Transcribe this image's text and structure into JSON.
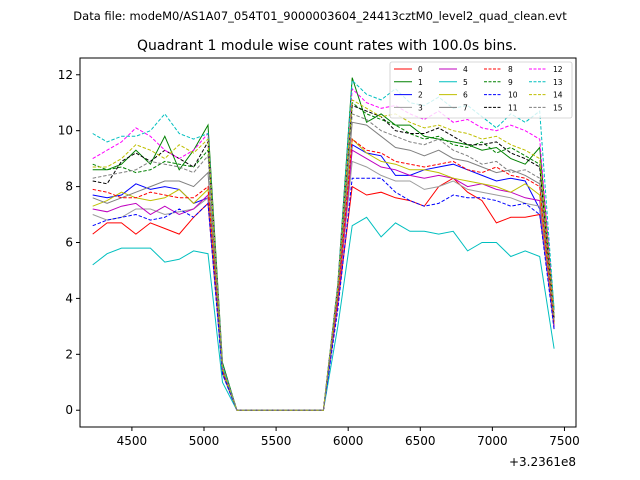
{
  "chart_data": {
    "type": "line",
    "suptitle": "Data file: modeM0/AS1A07_054T01_9000003604_24413cztM0_level2_quad_clean.evt",
    "title": "Quadrant 1 module wise count rates with 100.0s bins.",
    "xlabel": "",
    "ylabel": "",
    "x_offset_label": "+3.2361e8",
    "xlim": [
      4140,
      7580
    ],
    "ylim": [
      -0.6,
      12.6
    ],
    "xticks": [
      4500,
      5000,
      5500,
      6000,
      6500,
      7000,
      7500
    ],
    "yticks": [
      0,
      2,
      4,
      6,
      8,
      10,
      12
    ],
    "legend_position": "top-right",
    "x": [
      4228,
      4328,
      4428,
      4528,
      4628,
      4728,
      4828,
      4928,
      5028,
      5128,
      5228,
      5328,
      5428,
      5528,
      5628,
      5728,
      5828,
      5928,
      6028,
      6128,
      6228,
      6328,
      6428,
      6528,
      6628,
      6728,
      6828,
      6928,
      7028,
      7128,
      7228,
      7328,
      7428
    ],
    "series": [
      {
        "name": "0",
        "color": "#ff0000",
        "dash": false,
        "values": [
          6.3,
          6.7,
          6.7,
          6.3,
          6.7,
          6.5,
          6.3,
          6.9,
          7.4,
          1.4,
          0,
          0,
          0,
          0,
          0,
          0,
          0,
          3.8,
          8.0,
          7.7,
          7.8,
          7.6,
          7.5,
          7.3,
          8.0,
          8.3,
          7.8,
          7.5,
          6.7,
          6.9,
          6.9,
          7.0,
          3.2
        ]
      },
      {
        "name": "1",
        "color": "#008000",
        "dash": false,
        "values": [
          8.6,
          8.6,
          8.8,
          9.3,
          8.8,
          9.8,
          8.6,
          9.3,
          10.2,
          1.7,
          0,
          0,
          0,
          0,
          0,
          0,
          0,
          4.5,
          11.9,
          10.3,
          10.6,
          10.2,
          10.2,
          9.8,
          9.7,
          9.6,
          9.5,
          9.3,
          9.4,
          9.0,
          8.8,
          9.4,
          3.6
        ]
      },
      {
        "name": "2",
        "color": "#0000ff",
        "dash": false,
        "values": [
          7.7,
          7.6,
          7.7,
          8.1,
          7.9,
          8.0,
          7.9,
          7.4,
          7.6,
          1.3,
          0,
          0,
          0,
          0,
          0,
          0,
          0,
          3.9,
          9.5,
          9.2,
          9.1,
          8.4,
          8.4,
          8.6,
          8.7,
          8.8,
          8.6,
          8.4,
          8.2,
          8.3,
          8.2,
          7.2,
          3.0
        ]
      },
      {
        "name": "3",
        "color": "#9c9c9c",
        "dash": false,
        "values": [
          7.0,
          6.8,
          6.9,
          7.2,
          7.2,
          7.0,
          7.1,
          7.2,
          7.6,
          1.3,
          0,
          0,
          0,
          0,
          0,
          0,
          0,
          3.9,
          8.9,
          8.7,
          8.4,
          8.2,
          8.2,
          7.9,
          8.0,
          8.2,
          7.9,
          7.8,
          7.7,
          7.6,
          7.4,
          7.3,
          2.9
        ]
      },
      {
        "name": "4",
        "color": "#bf00bf",
        "dash": false,
        "values": [
          7.2,
          7.1,
          7.3,
          7.4,
          7.0,
          7.3,
          7.0,
          7.2,
          7.7,
          1.4,
          0,
          0,
          0,
          0,
          0,
          0,
          0,
          3.8,
          9.3,
          9.0,
          8.7,
          8.6,
          8.4,
          8.3,
          8.4,
          8.3,
          8.0,
          8.1,
          7.9,
          7.8,
          7.6,
          7.5,
          3.0
        ]
      },
      {
        "name": "5",
        "color": "#00bfbf",
        "dash": false,
        "values": [
          5.2,
          5.6,
          5.8,
          5.8,
          5.8,
          5.3,
          5.4,
          5.7,
          5.6,
          1.0,
          0,
          0,
          0,
          0,
          0,
          0,
          0,
          3.0,
          6.6,
          6.9,
          6.2,
          6.7,
          6.4,
          6.4,
          6.3,
          6.4,
          5.7,
          6.0,
          6.0,
          5.5,
          5.7,
          5.5,
          2.2
        ]
      },
      {
        "name": "6",
        "color": "#bfbf00",
        "dash": false,
        "values": [
          7.3,
          7.5,
          7.8,
          7.6,
          7.5,
          7.6,
          7.9,
          7.4,
          7.9,
          1.4,
          0,
          0,
          0,
          0,
          0,
          0,
          0,
          4.0,
          9.7,
          9.2,
          8.9,
          8.8,
          8.6,
          8.6,
          8.5,
          8.3,
          8.2,
          8.1,
          8.0,
          7.8,
          8.1,
          7.7,
          3.1
        ]
      },
      {
        "name": "7",
        "color": "#808080",
        "dash": false,
        "values": [
          7.6,
          7.4,
          7.6,
          7.8,
          8.0,
          8.2,
          8.2,
          8.0,
          8.5,
          1.5,
          0,
          0,
          0,
          0,
          0,
          0,
          0,
          4.1,
          10.3,
          10.2,
          9.8,
          9.4,
          9.3,
          9.1,
          9.3,
          9.0,
          8.9,
          8.7,
          8.5,
          8.6,
          8.4,
          8.1,
          3.2
        ]
      },
      {
        "name": "8",
        "color": "#ff0000",
        "dash": true,
        "values": [
          7.9,
          7.8,
          7.6,
          7.6,
          7.8,
          7.7,
          7.6,
          7.6,
          8.0,
          1.4,
          0,
          0,
          0,
          0,
          0,
          0,
          0,
          4.0,
          9.7,
          9.3,
          9.2,
          8.9,
          8.8,
          8.7,
          8.8,
          8.9,
          8.6,
          8.5,
          8.7,
          8.4,
          8.3,
          8.0,
          3.1
        ]
      },
      {
        "name": "9",
        "color": "#008000",
        "dash": true,
        "values": [
          8.8,
          8.6,
          8.7,
          8.5,
          8.6,
          8.9,
          8.8,
          8.7,
          9.3,
          1.5,
          0,
          0,
          0,
          0,
          0,
          0,
          0,
          4.4,
          11.0,
          10.6,
          10.4,
          10.2,
          9.9,
          9.7,
          9.8,
          9.5,
          9.4,
          9.6,
          9.2,
          9.4,
          9.1,
          8.8,
          3.4
        ]
      },
      {
        "name": "10",
        "color": "#0000ff",
        "dash": true,
        "values": [
          6.6,
          6.8,
          6.9,
          7.0,
          6.8,
          6.9,
          7.2,
          6.9,
          7.4,
          1.3,
          0,
          0,
          0,
          0,
          0,
          0,
          0,
          3.6,
          8.3,
          8.3,
          8.3,
          7.8,
          7.5,
          7.3,
          7.4,
          7.7,
          7.6,
          7.6,
          7.5,
          7.3,
          7.4,
          7.0,
          2.9
        ]
      },
      {
        "name": "11",
        "color": "#000000",
        "dash": true,
        "values": [
          8.2,
          8.1,
          8.9,
          9.2,
          8.9,
          9.3,
          9.0,
          8.7,
          9.6,
          1.5,
          0,
          0,
          0,
          0,
          0,
          0,
          0,
          4.3,
          10.9,
          10.7,
          10.5,
          10.0,
          9.9,
          9.9,
          10.1,
          9.8,
          9.5,
          9.5,
          9.6,
          9.2,
          9.0,
          8.7,
          3.3
        ]
      },
      {
        "name": "12",
        "color": "#ff00ff",
        "dash": true,
        "values": [
          9.0,
          9.3,
          9.6,
          10.1,
          9.8,
          9.3,
          9.0,
          9.3,
          9.9,
          1.6,
          0,
          0,
          0,
          0,
          0,
          0,
          0,
          4.5,
          11.5,
          11.0,
          10.8,
          10.9,
          10.6,
          10.4,
          10.7,
          10.3,
          10.4,
          10.1,
          10.0,
          10.2,
          10.0,
          9.7,
          3.5
        ]
      },
      {
        "name": "13",
        "color": "#00bfbf",
        "dash": true,
        "values": [
          9.9,
          9.6,
          9.8,
          9.8,
          10.0,
          10.6,
          9.9,
          9.7,
          9.9,
          1.6,
          0,
          0,
          0,
          0,
          0,
          0,
          0,
          4.5,
          11.8,
          11.3,
          11.1,
          11.5,
          11.0,
          10.9,
          11.2,
          10.8,
          10.9,
          10.5,
          10.1,
          10.6,
          10.3,
          10.7,
          3.6
        ]
      },
      {
        "name": "14",
        "color": "#bfbf00",
        "dash": true,
        "values": [
          8.7,
          8.7,
          9.0,
          9.5,
          9.3,
          9.0,
          9.5,
          9.2,
          9.7,
          1.5,
          0,
          0,
          0,
          0,
          0,
          0,
          0,
          4.4,
          11.1,
          10.8,
          10.5,
          10.6,
          10.3,
          10.1,
          10.2,
          10.0,
          9.9,
          9.7,
          9.8,
          9.5,
          9.3,
          9.0,
          3.4
        ]
      },
      {
        "name": "15",
        "color": "#808080",
        "dash": true,
        "values": [
          8.3,
          8.4,
          8.5,
          8.6,
          8.9,
          8.8,
          8.7,
          8.5,
          9.1,
          1.5,
          0,
          0,
          0,
          0,
          0,
          0,
          0,
          4.2,
          10.6,
          10.4,
          10.0,
          9.8,
          9.6,
          9.5,
          9.7,
          9.3,
          9.1,
          8.8,
          8.9,
          8.5,
          8.6,
          8.3,
          3.2
        ]
      }
    ]
  }
}
